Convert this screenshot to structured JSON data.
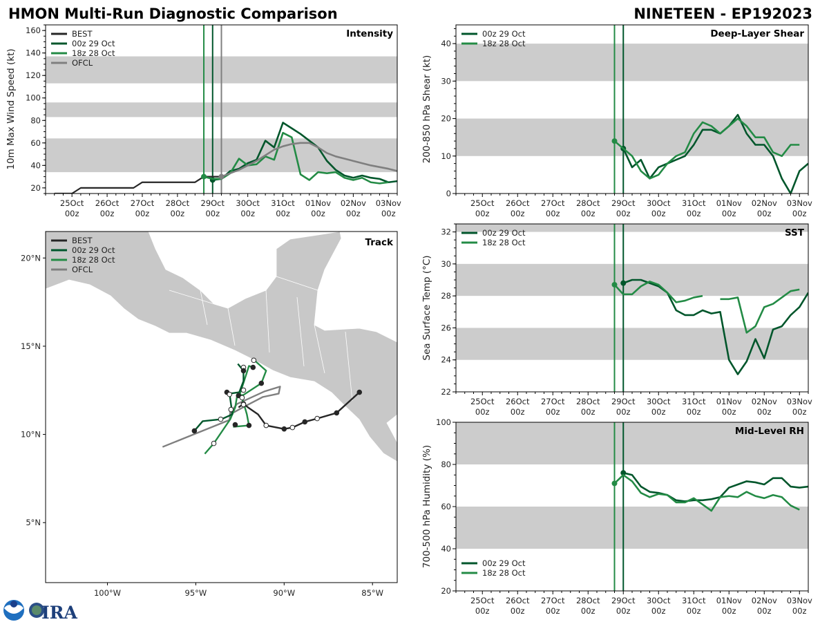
{
  "header": {
    "title_left": "HMON Multi-Run Diagnostic Comparison",
    "title_right": "NINETEEN - EP192023"
  },
  "logos": [
    "NOAA",
    "CIRA"
  ],
  "colors": {
    "BEST": "#262626",
    "00z 29 Oct": "#00562b",
    "18z 28 Oct": "#238b45",
    "OFCL": "#7f7f7f",
    "band": "#cccccc",
    "land": "#c8c8c8"
  },
  "x_tick_labels": [
    [
      "25Oct",
      "00z"
    ],
    [
      "26Oct",
      "00z"
    ],
    [
      "27Oct",
      "00z"
    ],
    [
      "28Oct",
      "00z"
    ],
    [
      "29Oct",
      "00z"
    ],
    [
      "30Oct",
      "00z"
    ],
    [
      "31Oct",
      "00z"
    ],
    [
      "01Nov",
      "00z"
    ],
    [
      "02Nov",
      "00z"
    ],
    [
      "03Nov",
      "00z"
    ]
  ],
  "chart_data": [
    {
      "id": "intensity",
      "type": "line",
      "title": "Intensity",
      "ylabel": "10m Max Wind Speed (kt)",
      "x_units": "hours since 25Oct 00z",
      "xlim": [
        -18,
        222
      ],
      "ylim": [
        15,
        165
      ],
      "yticks": [
        20,
        40,
        60,
        80,
        100,
        120,
        140,
        160
      ],
      "bands": [
        [
          34,
          64
        ],
        [
          83,
          96
        ],
        [
          113,
          137
        ]
      ],
      "legend": [
        "BEST",
        "00z 29 Oct",
        "18z 28 Oct",
        "OFCL"
      ],
      "legend_position": "top-left",
      "init_lines": [
        {
          "hour": 90,
          "series": "18z 28 Oct"
        },
        {
          "hour": 96,
          "series": "00z 29 Oct"
        },
        {
          "hour": 102,
          "series": "OFCL"
        }
      ],
      "series": [
        {
          "name": "BEST",
          "x": [
            -12,
            -6,
            0,
            6,
            12,
            18,
            24,
            30,
            36,
            42,
            48,
            54,
            60,
            66,
            72,
            78,
            84,
            90,
            96,
            102
          ],
          "values": [
            15,
            15,
            15,
            20,
            20,
            20,
            20,
            20,
            20,
            20,
            25,
            25,
            25,
            25,
            25,
            25,
            25,
            30,
            30,
            30
          ],
          "marker": false
        },
        {
          "name": "00z 29 Oct",
          "t0": 96,
          "dt": 6,
          "values": [
            27,
            28,
            35,
            37,
            42,
            45,
            62,
            56,
            78,
            73,
            68,
            62,
            56,
            44,
            36,
            31,
            29,
            31,
            29,
            28,
            25,
            26
          ],
          "marker": true
        },
        {
          "name": "18z 28 Oct",
          "t0": 90,
          "dt": 6,
          "values": [
            30,
            28,
            28,
            33,
            46,
            40,
            41,
            48,
            45,
            69,
            65,
            32,
            27,
            34,
            33,
            34,
            29,
            27,
            29,
            25,
            24,
            25
          ],
          "marker": true
        },
        {
          "name": "OFCL",
          "x": [
            102,
            108,
            114,
            120,
            126,
            132,
            138,
            144,
            150,
            156,
            162,
            168,
            174,
            180,
            192,
            204,
            216,
            222
          ],
          "values": [
            30,
            33,
            36,
            40,
            44,
            49,
            54,
            57,
            59,
            60,
            60,
            56,
            51,
            48,
            44,
            40,
            37,
            35
          ],
          "marker": true
        }
      ]
    },
    {
      "id": "shear",
      "type": "line",
      "title": "Deep-Layer Shear",
      "ylabel": "200-850 hPa Shear (kt)",
      "x_units": "hours since 25Oct 00z",
      "xlim": [
        -18,
        222
      ],
      "ylim": [
        0,
        45
      ],
      "yticks": [
        0,
        10,
        20,
        30,
        40
      ],
      "bands": [
        [
          10,
          20
        ],
        [
          30,
          40
        ]
      ],
      "legend": [
        "00z 29 Oct",
        "18z 28 Oct"
      ],
      "legend_position": "top-left",
      "init_lines": [
        {
          "hour": 90,
          "series": "18z 28 Oct"
        },
        {
          "hour": 96,
          "series": "00z 29 Oct"
        }
      ],
      "series": [
        {
          "name": "00z 29 Oct",
          "t0": 96,
          "dt": 6,
          "values": [
            12,
            7,
            9,
            4,
            7,
            8,
            9,
            10,
            13,
            17,
            17,
            16,
            18,
            21,
            16,
            13,
            13,
            10,
            4,
            0,
            6,
            8
          ],
          "marker": true
        },
        {
          "name": "18z 28 Oct",
          "t0": 90,
          "dt": 6,
          "values": [
            14,
            12,
            10,
            6,
            4,
            5,
            8,
            10,
            11,
            16,
            19,
            18,
            16,
            18,
            20,
            18,
            15,
            15,
            11,
            10,
            13,
            13
          ],
          "marker": true
        }
      ]
    },
    {
      "id": "sst",
      "type": "line",
      "title": "SST",
      "ylabel": "Sea Surface Temp (°C)",
      "x_units": "hours since 25Oct 00z",
      "xlim": [
        -18,
        222
      ],
      "ylim": [
        22,
        32.5
      ],
      "yticks": [
        22,
        24,
        26,
        28,
        30,
        32
      ],
      "bands": [
        [
          24,
          26
        ],
        [
          28,
          30
        ],
        [
          32,
          34
        ]
      ],
      "legend": [
        "00z 29 Oct",
        "18z 28 Oct"
      ],
      "legend_position": "top-left",
      "init_lines": [
        {
          "hour": 90,
          "series": "18z 28 Oct"
        },
        {
          "hour": 96,
          "series": "00z 29 Oct"
        }
      ],
      "series": [
        {
          "name": "00z 29 Oct",
          "t0": 96,
          "dt": 6,
          "values": [
            28.8,
            29.0,
            29.0,
            28.8,
            28.6,
            28.2,
            27.1,
            26.8,
            26.8,
            27.1,
            26.9,
            27.0,
            24.0,
            23.1,
            23.9,
            25.3,
            24.1,
            25.9,
            26.1,
            26.8,
            27.3,
            28.2
          ],
          "marker": true
        },
        {
          "name": "18z 28 Oct",
          "t0": 90,
          "dt": 6,
          "values": [
            28.7,
            28.1,
            28.1,
            28.6,
            28.9,
            28.7,
            28.2,
            27.6,
            27.7,
            27.9,
            28.0,
            null,
            27.8,
            27.8,
            27.9,
            25.7,
            26.1,
            27.3,
            27.5,
            27.9,
            28.3,
            28.4
          ],
          "marker": true
        }
      ]
    },
    {
      "id": "rh",
      "type": "line",
      "title": "Mid-Level RH",
      "ylabel": "700-500 hPa Humidity (%)",
      "x_units": "hours since 25Oct 00z",
      "xlim": [
        -18,
        222
      ],
      "ylim": [
        20,
        100
      ],
      "yticks": [
        20,
        40,
        60,
        80,
        100
      ],
      "bands": [
        [
          40,
          60
        ],
        [
          80,
          100
        ]
      ],
      "legend": [
        "00z 29 Oct",
        "18z 28 Oct"
      ],
      "legend_position": "bottom-left",
      "init_lines": [
        {
          "hour": 90,
          "series": "18z 28 Oct"
        },
        {
          "hour": 96,
          "series": "00z 29 Oct"
        }
      ],
      "series": [
        {
          "name": "00z 29 Oct",
          "t0": 96,
          "dt": 6,
          "values": [
            76,
            75,
            69.5,
            67,
            66.5,
            65.5,
            63,
            62.5,
            63,
            63,
            63.5,
            64.5,
            69,
            70.5,
            72,
            71.5,
            70.5,
            73.5,
            73.5,
            69.5,
            69,
            69.5
          ],
          "marker": true
        },
        {
          "name": "18z 28 Oct",
          "t0": 90,
          "dt": 6,
          "values": [
            71,
            75,
            72,
            66.5,
            64.5,
            66,
            65.5,
            62,
            62,
            64,
            61,
            58,
            64.5,
            65,
            64.5,
            67,
            65,
            64,
            65.5,
            64.5,
            60.5,
            58.5
          ],
          "marker": true
        }
      ]
    },
    {
      "id": "track",
      "type": "map",
      "title": "Track",
      "lon_lim": [
        -103.5,
        -83.6
      ],
      "lat_lim": [
        1.6,
        21.5
      ],
      "xticks": [
        {
          "lon": -100,
          "label": "100°W"
        },
        {
          "lon": -95,
          "label": "95°W"
        },
        {
          "lon": -90,
          "label": "90°W"
        },
        {
          "lon": -85,
          "label": "85°W"
        }
      ],
      "yticks": [
        {
          "lat": 20,
          "label": "20°N"
        },
        {
          "lat": 15,
          "label": "15°N"
        },
        {
          "lat": 10,
          "label": "10°N"
        },
        {
          "lat": 5,
          "label": "5°N"
        }
      ],
      "legend": [
        "BEST",
        "00z 29 Oct",
        "18z 28 Oct",
        "OFCL"
      ],
      "legend_position": "top-left",
      "tracks": [
        {
          "name": "OFCL",
          "segments": [
            [
              [
                -96.88,
                9.29
              ],
              [
                -93.09,
                10.82
              ],
              [
                -93.05,
                11.25
              ],
              [
                -92.66,
                11.73
              ],
              [
                -91.13,
                12.43
              ],
              [
                -90.23,
                12.71
              ],
              [
                -90.31,
                12.31
              ],
              [
                -91.21,
                12.12
              ],
              [
                -92.11,
                11.65
              ],
              [
                -93.05,
                11.14
              ]
            ]
          ]
        },
        {
          "name": "18z 28 Oct",
          "segments": [
            [
              [
                -94.49,
                8.9
              ],
              [
                -93.98,
                9.49
              ],
              [
                -93.05,
                10.86
              ],
              [
                -92.77,
                11.53
              ],
              [
                -92.66,
                12.2
              ],
              [
                -92.3,
                12.24
              ],
              [
                -91.29,
                12.9
              ],
              [
                -91.02,
                13.61
              ],
              [
                -91.68,
                14.2
              ]
            ],
            [
              [
                -92.89,
                10.43
              ],
              [
                -91.99,
                10.51
              ],
              [
                -92.11,
                11.14
              ],
              [
                -92.3,
                11.8
              ],
              [
                -92.5,
                12.31
              ],
              [
                -91.99,
                13.88
              ],
              [
                -91.76,
                13.8
              ]
            ]
          ]
        },
        {
          "name": "00z 29 Oct",
          "segments": [
            [
              [
                -92.62,
                14.0
              ],
              [
                -92.3,
                13.61
              ],
              [
                -92.3,
                13.02
              ],
              [
                -92.54,
                12.39
              ],
              [
                -93.09,
                12.31
              ],
              [
                -93.01,
                11.73
              ],
              [
                -92.93,
                11.14
              ],
              [
                -93.55,
                10.86
              ],
              [
                -94.61,
                10.75
              ],
              [
                -95.08,
                10.2
              ]
            ]
          ]
        },
        {
          "name": "BEST",
          "segments": [
            [
              [
                -85.74,
                12.39
              ],
              [
                -87.03,
                11.22
              ],
              [
                -88.13,
                10.9
              ],
              [
                -88.83,
                10.71
              ],
              [
                -89.53,
                10.39
              ],
              [
                -90.0,
                10.31
              ],
              [
                -91.02,
                10.51
              ],
              [
                -91.48,
                11.14
              ],
              [
                -91.99,
                11.49
              ],
              [
                -92.3,
                11.73
              ],
              [
                -92.58,
                11.53
              ]
            ]
          ]
        }
      ],
      "markers": [
        [
          -85.74,
          12.39,
          "filled"
        ],
        [
          -87.03,
          11.22,
          "filled"
        ],
        [
          -88.13,
          10.9,
          "open"
        ],
        [
          -88.83,
          10.71,
          "filled"
        ],
        [
          -89.53,
          10.39,
          "open"
        ],
        [
          -90.0,
          10.31,
          "filled"
        ],
        [
          -91.02,
          10.51,
          "open"
        ],
        [
          -92.3,
          11.73,
          "open"
        ],
        [
          -92.3,
          13.8,
          "open"
        ],
        [
          -92.3,
          13.61,
          "filled"
        ],
        [
          -91.72,
          14.2,
          "open"
        ],
        [
          -91.76,
          13.8,
          "filled"
        ],
        [
          -91.29,
          12.9,
          "filled"
        ],
        [
          -93.24,
          12.39,
          "filled"
        ],
        [
          -93.09,
          12.27,
          "open"
        ],
        [
          -92.58,
          12.2,
          "filled"
        ],
        [
          -92.38,
          12.08,
          "open"
        ],
        [
          -92.3,
          12.51,
          "open"
        ],
        [
          -92.3,
          11.69,
          "open"
        ],
        [
          -93.01,
          11.41,
          "open"
        ],
        [
          -93.59,
          10.86,
          "open"
        ],
        [
          -95.08,
          10.2,
          "filled"
        ],
        [
          -93.98,
          9.49,
          "open"
        ],
        [
          -91.99,
          10.51,
          "filled"
        ],
        [
          -92.77,
          10.55,
          "filled"
        ]
      ]
    }
  ]
}
